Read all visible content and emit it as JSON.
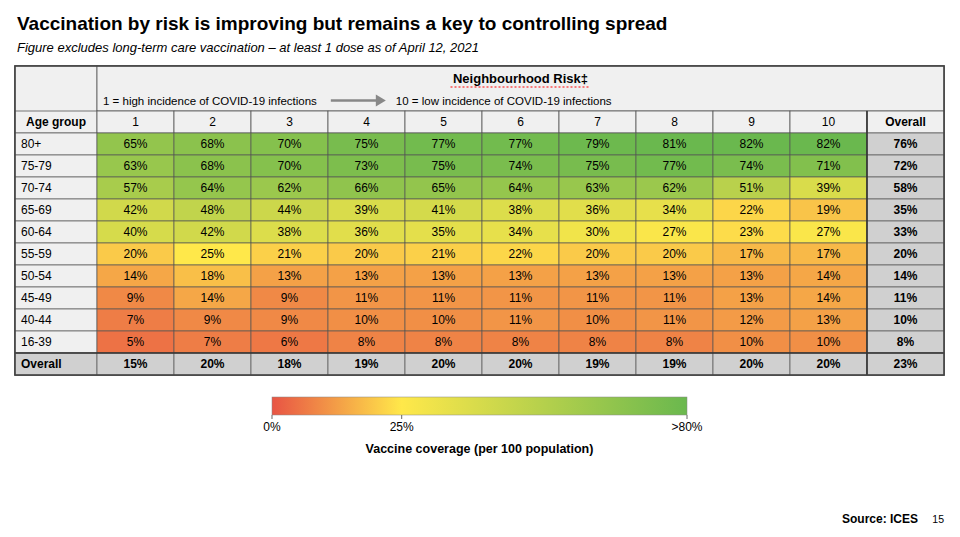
{
  "chart_data": {
    "type": "heatmap",
    "title": "Vaccination by risk is improving but remains a key to controlling spread",
    "subtitle": "Figure excludes long-term care vaccination – at least 1 dose as of April 12, 2021",
    "x_label": "Neighbourhood Risk‡",
    "y_label": "Age group",
    "annotations": [
      "1 = high incidence of COVID-19 infections",
      "10 = low incidence of COVID-19 infections",
      "Source: ICES",
      "15"
    ],
    "categories": [
      "1",
      "2",
      "3",
      "4",
      "5",
      "6",
      "7",
      "8",
      "9",
      "10",
      "Overall"
    ],
    "y_categories": [
      "80+",
      "75-79",
      "70-74",
      "65-69",
      "60-64",
      "55-59",
      "50-54",
      "45-49",
      "40-44",
      "16-39",
      "Overall"
    ],
    "values": [
      [
        65,
        68,
        70,
        75,
        77,
        77,
        79,
        81,
        82,
        82,
        76
      ],
      [
        63,
        68,
        70,
        73,
        75,
        74,
        75,
        77,
        74,
        71,
        72
      ],
      [
        57,
        64,
        62,
        66,
        65,
        64,
        63,
        62,
        51,
        39,
        58
      ],
      [
        42,
        48,
        44,
        39,
        41,
        38,
        36,
        34,
        22,
        19,
        35
      ],
      [
        40,
        42,
        38,
        36,
        35,
        34,
        30,
        27,
        23,
        27,
        33
      ],
      [
        20,
        25,
        21,
        20,
        21,
        22,
        20,
        20,
        17,
        17,
        20
      ],
      [
        14,
        18,
        13,
        13,
        13,
        13,
        13,
        13,
        13,
        14,
        14
      ],
      [
        9,
        14,
        9,
        11,
        11,
        11,
        11,
        11,
        13,
        14,
        11
      ],
      [
        7,
        9,
        9,
        10,
        10,
        11,
        10,
        11,
        12,
        13,
        10
      ],
      [
        5,
        7,
        6,
        8,
        8,
        8,
        8,
        8,
        10,
        10,
        8
      ],
      [
        15,
        20,
        18,
        19,
        20,
        20,
        19,
        19,
        20,
        20,
        23
      ]
    ],
    "value_labels": [
      [
        "65%",
        "68%",
        "70%",
        "75%",
        "77%",
        "77%",
        "79%",
        "81%",
        "82%",
        "82%",
        "76%"
      ],
      [
        "63%",
        "68%",
        "70%",
        "73%",
        "75%",
        "74%",
        "75%",
        "77%",
        "74%",
        "71%",
        "72%"
      ],
      [
        "57%",
        "64%",
        "62%",
        "66%",
        "65%",
        "64%",
        "63%",
        "62%",
        "51%",
        "39%",
        "58%"
      ],
      [
        "42%",
        "48%",
        "44%",
        "39%",
        "41%",
        "38%",
        "36%",
        "34%",
        "22%",
        "19%",
        "35%"
      ],
      [
        "40%",
        "42%",
        "38%",
        "36%",
        "35%",
        "34%",
        "30%",
        "27%",
        "23%",
        "27%",
        "33%"
      ],
      [
        "20%",
        "25%",
        "21%",
        "20%",
        "21%",
        "22%",
        "20%",
        "20%",
        "17%",
        "17%",
        "20%"
      ],
      [
        "14%",
        "18%",
        "13%",
        "13%",
        "13%",
        "13%",
        "13%",
        "13%",
        "13%",
        "14%",
        "14%"
      ],
      [
        "9%",
        "14%",
        "9%",
        "11%",
        "11%",
        "11%",
        "11%",
        "11%",
        "13%",
        "14%",
        "11%"
      ],
      [
        "7%",
        "9%",
        "9%",
        "10%",
        "10%",
        "11%",
        "10%",
        "11%",
        "12%",
        "13%",
        "10%"
      ],
      [
        "5%",
        "7%",
        "6%",
        "8%",
        "8%",
        "8%",
        "8%",
        "8%",
        "10%",
        "10%",
        "8%"
      ],
      [
        "15%",
        "20%",
        "18%",
        "19%",
        "20%",
        "20%",
        "19%",
        "19%",
        "20%",
        "20%",
        "23%"
      ]
    ],
    "data_labels": true,
    "colorbar": {
      "label": "Vaccine coverage (per 100 population)",
      "range": [
        0,
        80
      ],
      "ticks": [
        {
          "value": 0,
          "label": "0%"
        },
        {
          "value": 25,
          "label": "25%"
        },
        {
          "value": 80,
          "label": ">80%"
        }
      ],
      "colors": [
        "#e85444",
        "#ffe84a",
        "#6ab84e"
      ]
    }
  }
}
